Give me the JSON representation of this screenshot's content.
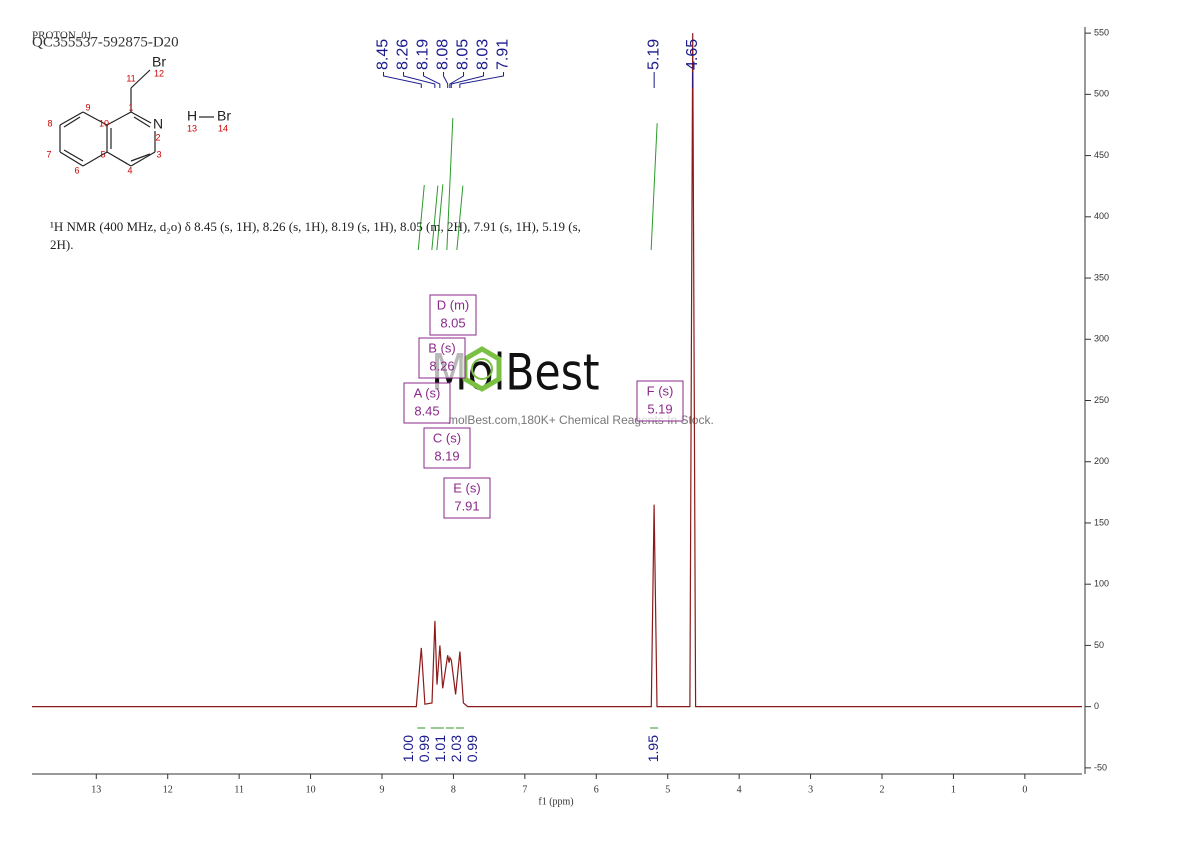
{
  "chart_data": {
    "type": "nmr",
    "header": {
      "experiment": "PROTON_01",
      "sample": "QC355537-592875-D20"
    },
    "description": "¹H NMR (400 MHz, d₂o) δ 8.45 (s, 1H), 8.26 (s, 1H), 8.19 (s, 1H), 8.05 (m, 2H), 7.91 (s, 1H), 5.19 (s, 2H).",
    "structure_labels": [
      "Br",
      "12",
      "11",
      "1",
      "N",
      "2",
      "3",
      "4",
      "5",
      "10",
      "9",
      "8",
      "7",
      "6",
      "H",
      "Br",
      "13",
      "14"
    ],
    "watermark": {
      "brand": "MolBest",
      "tagline": "molBest.com,180K+ Chemical Reagents In Stock."
    },
    "xlabel": "f1 (ppm)",
    "xlim": [
      13.9,
      -0.8
    ],
    "xticks": [
      13,
      12,
      11,
      10,
      9,
      8,
      7,
      6,
      5,
      4,
      3,
      2,
      1,
      0
    ],
    "ylim": [
      -55,
      555
    ],
    "yticks": [
      -50,
      0,
      50,
      100,
      150,
      200,
      250,
      300,
      350,
      400,
      450,
      500,
      550
    ],
    "color": "#8b1a1a",
    "x": [
      13.9,
      8.52,
      8.45,
      8.4,
      8.3,
      8.26,
      8.23,
      8.19,
      8.15,
      8.08,
      8.06,
      8.05,
      8.03,
      7.97,
      7.91,
      7.86,
      7.8,
      5.23,
      5.19,
      5.15,
      4.69,
      4.65,
      4.61,
      -0.8
    ],
    "values": [
      0,
      0,
      48,
      2,
      3,
      70,
      18,
      50,
      15,
      42,
      36,
      40,
      38,
      10,
      45,
      3,
      0,
      0,
      165,
      0,
      0,
      550,
      0,
      0
    ],
    "peak_labels": [
      8.45,
      8.26,
      8.19,
      8.08,
      8.05,
      8.03,
      7.91,
      5.19,
      4.65
    ],
    "integrals": {
      "x": [
        8.45,
        8.26,
        8.19,
        8.05,
        7.91,
        5.19
      ],
      "values": [
        1,
        0.99,
        1.01,
        2.03,
        0.99,
        1.95
      ],
      "value_labels": [
        "1.00",
        "0.99",
        "1.01",
        "2.03",
        "0.99",
        "1.95"
      ]
    },
    "multiplets": [
      {
        "label": "D (m)",
        "shift": 8.05
      },
      {
        "label": "B (s)",
        "shift": 8.26
      },
      {
        "label": "A (s)",
        "shift": 8.45
      },
      {
        "label": "F (s)",
        "shift": 5.19
      },
      {
        "label": "C (s)",
        "shift": 8.19
      },
      {
        "label": "E (s)",
        "shift": 7.91
      }
    ]
  }
}
